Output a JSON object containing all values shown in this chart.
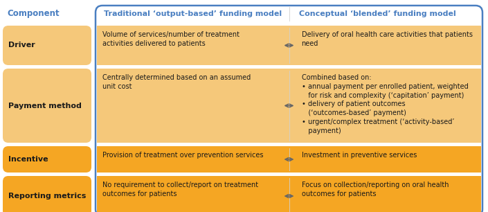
{
  "header": {
    "col1": "Component",
    "col2": "Traditional ‘output-based’ funding model",
    "col3": "Conceptual ‘blended’ funding model"
  },
  "rows": [
    {
      "component": "Driver",
      "col2": "Volume of services/number of treatment\nactivities delivered to patients",
      "col3": "Delivery of oral health care activities that patients\nneed",
      "color": "light"
    },
    {
      "component": "Payment method",
      "col2": "Centrally determined based on an assumed\nunit cost",
      "col3": "Combined based on:\n• annual payment per enrolled patient, weighted\n   for risk and complexity (‘capitation’ payment)\n• delivery of patient outcomes\n   (‘outcomes-based’ payment)\n• urgent/complex treatment (‘activity-based’\n   payment)",
      "color": "light"
    },
    {
      "component": "Incentive",
      "col2": "Provision of treatment over prevention services",
      "col3": "Investment in preventive services",
      "color": "dark"
    },
    {
      "component": "Reporting metrics",
      "col2": "No requirement to collect/report on treatment\noutcomes for patients",
      "col3": "Focus on collection/reporting on oral health\noutcomes for patients",
      "color": "dark"
    }
  ],
  "colors": {
    "light_orange": "#F5C87A",
    "dark_orange": "#F5A623",
    "border_blue": "#4A7FC1",
    "header_text_blue": "#4A7FC1",
    "text_dark": "#1a1a1a",
    "arrow_color": "#666666",
    "white": "#FFFFFF",
    "bg": "#FFFFFF"
  },
  "figsize": [
    7.05,
    3.06
  ],
  "dpi": 100
}
